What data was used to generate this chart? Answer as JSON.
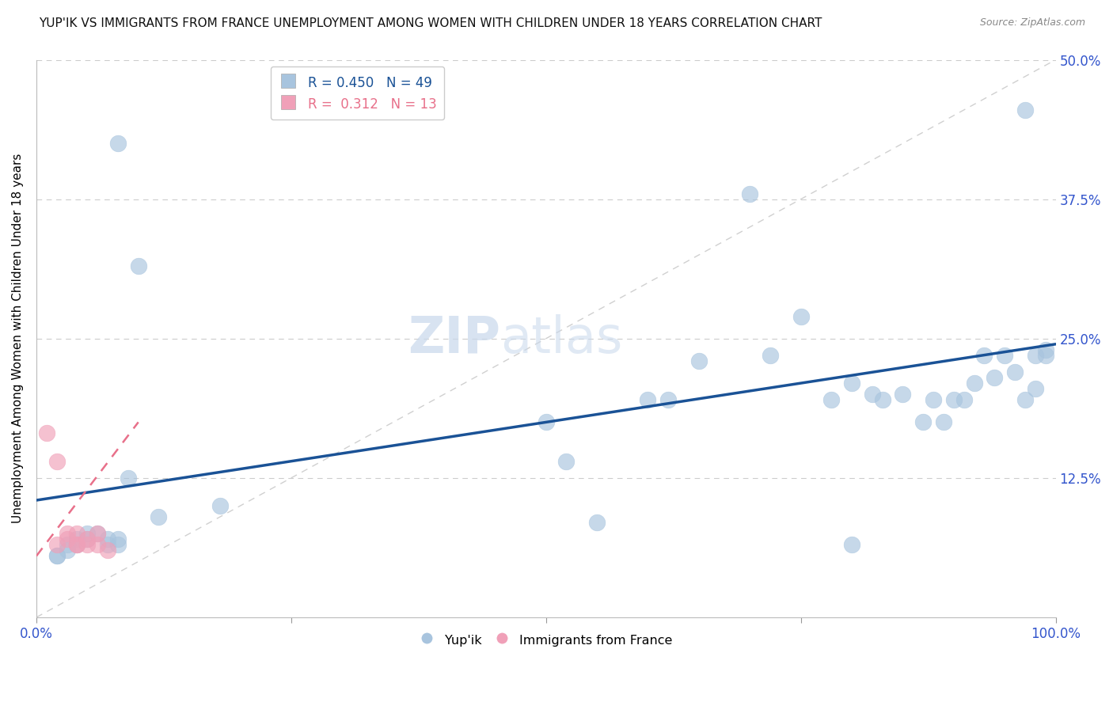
{
  "title": "YUP'IK VS IMMIGRANTS FROM FRANCE UNEMPLOYMENT AMONG WOMEN WITH CHILDREN UNDER 18 YEARS CORRELATION CHART",
  "source": "Source: ZipAtlas.com",
  "ylabel": "Unemployment Among Women with Children Under 18 years",
  "xlim": [
    0,
    1.0
  ],
  "ylim": [
    0,
    0.5
  ],
  "xticks": [
    0.0,
    0.25,
    0.5,
    0.75,
    1.0
  ],
  "xticklabels": [
    "0.0%",
    "",
    "",
    "",
    "100.0%"
  ],
  "yticks": [
    0.0,
    0.125,
    0.25,
    0.375,
    0.5
  ],
  "yticklabels": [
    "",
    "12.5%",
    "25.0%",
    "37.5%",
    "50.0%"
  ],
  "background_color": "#ffffff",
  "legend_R_blue": "0.450",
  "legend_N_blue": "49",
  "legend_R_pink": "0.312",
  "legend_N_pink": "13",
  "blue_scatter_x": [
    0.08,
    0.1,
    0.02,
    0.02,
    0.03,
    0.03,
    0.04,
    0.04,
    0.05,
    0.05,
    0.06,
    0.07,
    0.07,
    0.08,
    0.08,
    0.09,
    0.12,
    0.18,
    0.5,
    0.52,
    0.55,
    0.6,
    0.62,
    0.65,
    0.7,
    0.72,
    0.75,
    0.78,
    0.8,
    0.82,
    0.83,
    0.85,
    0.87,
    0.88,
    0.89,
    0.9,
    0.91,
    0.92,
    0.93,
    0.94,
    0.95,
    0.96,
    0.97,
    0.98,
    0.98,
    0.99,
    0.99,
    0.8,
    0.97
  ],
  "blue_scatter_y": [
    0.425,
    0.315,
    0.055,
    0.055,
    0.06,
    0.065,
    0.065,
    0.07,
    0.07,
    0.075,
    0.075,
    0.065,
    0.07,
    0.065,
    0.07,
    0.125,
    0.09,
    0.1,
    0.175,
    0.14,
    0.085,
    0.195,
    0.195,
    0.23,
    0.38,
    0.235,
    0.27,
    0.195,
    0.21,
    0.2,
    0.195,
    0.2,
    0.175,
    0.195,
    0.175,
    0.195,
    0.195,
    0.21,
    0.235,
    0.215,
    0.235,
    0.22,
    0.195,
    0.235,
    0.205,
    0.24,
    0.235,
    0.065,
    0.455
  ],
  "pink_scatter_x": [
    0.01,
    0.02,
    0.02,
    0.03,
    0.03,
    0.04,
    0.04,
    0.04,
    0.05,
    0.05,
    0.06,
    0.06,
    0.07
  ],
  "pink_scatter_y": [
    0.165,
    0.14,
    0.065,
    0.07,
    0.075,
    0.065,
    0.065,
    0.075,
    0.065,
    0.07,
    0.065,
    0.075,
    0.06
  ],
  "blue_line_x0": 0.0,
  "blue_line_y0": 0.105,
  "blue_line_x1": 1.0,
  "blue_line_y1": 0.245,
  "pink_line_x0": 0.0,
  "pink_line_y0": 0.055,
  "pink_line_x1": 0.1,
  "pink_line_y1": 0.175,
  "blue_line_color": "#1a5296",
  "pink_line_color": "#e8708a",
  "blue_scatter_color": "#a8c4de",
  "pink_scatter_color": "#f0a0b8",
  "grid_color": "#cccccc",
  "tick_color": "#3355cc"
}
